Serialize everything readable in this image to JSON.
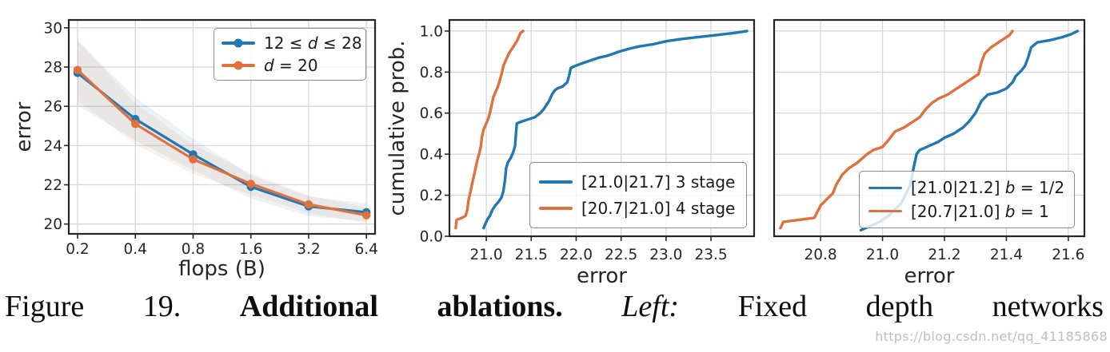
{
  "colors": {
    "blue": "#1f77b4",
    "orange": "#e0703c",
    "grid": "#d7d7d7",
    "spine": "#262626"
  },
  "watermark": "https://blog.csdn.net/qq_41185868",
  "caption": {
    "words": [
      {
        "text": "Figure"
      },
      {
        "text": "19."
      },
      {
        "text": "Additional",
        "bold": true
      },
      {
        "text": "ablations.",
        "bold": true
      },
      {
        "text": "Left:",
        "italic": true
      },
      {
        "text": "Fixed"
      },
      {
        "text": "depth"
      },
      {
        "text": "networks"
      }
    ]
  },
  "chart_data": [
    {
      "type": "line",
      "title": "",
      "xlabel": "flops (B)",
      "ylabel": "error",
      "xscale": "log2",
      "xlim": [
        0.18,
        7.1
      ],
      "ylim": [
        19.5,
        30.4
      ],
      "grid": true,
      "xtick_values": [
        0.2,
        0.4,
        0.8,
        1.6,
        3.2,
        6.4
      ],
      "xtick_labels": [
        "0.2",
        "0.4",
        "0.8",
        "1.6",
        "3.2",
        "6.4"
      ],
      "ytick_values": [
        20,
        22,
        24,
        26,
        28,
        30
      ],
      "ytick_labels": [
        "20",
        "22",
        "24",
        "26",
        "28",
        "30"
      ],
      "series": [
        {
          "name": "12 <= d <= 28",
          "color": "#1f77b4",
          "marker": true,
          "x": [
            0.2,
            0.4,
            0.8,
            1.6,
            3.2,
            6.4
          ],
          "y": [
            27.7,
            25.35,
            23.55,
            21.9,
            20.9,
            20.6
          ],
          "band": [
            1.65,
            1.1,
            0.8,
            0.6,
            0.5,
            0.45
          ]
        },
        {
          "name": "d = 20",
          "color": "#e0703c",
          "marker": true,
          "x": [
            0.2,
            0.4,
            0.8,
            1.6,
            3.2,
            6.4
          ],
          "y": [
            27.85,
            25.1,
            23.3,
            22.05,
            21.0,
            20.45
          ],
          "band": [
            1.55,
            1.05,
            0.75,
            0.55,
            0.45,
            0.4
          ]
        }
      ],
      "legend": {
        "position": "top-right",
        "items": [
          {
            "color": "#1f77b4",
            "marker": true,
            "segments": [
              {
                "text": "12 ≤ "
              },
              {
                "text": "d",
                "italic": true
              },
              {
                "text": " ≤ 28"
              }
            ]
          },
          {
            "color": "#e0703c",
            "marker": true,
            "segments": [
              {
                "text": "d",
                "italic": true
              },
              {
                "text": " = 20"
              }
            ]
          }
        ]
      }
    },
    {
      "type": "line",
      "title": "",
      "xlabel": "error",
      "ylabel": "cumulative prob.",
      "xscale": "linear",
      "xlim": [
        20.59,
        23.98
      ],
      "ylim": [
        0,
        1.054
      ],
      "grid": true,
      "xtick_values": [
        21.0,
        21.5,
        22.0,
        22.5,
        23.0,
        23.5
      ],
      "xtick_labels": [
        "21.0",
        "21.5",
        "22.0",
        "22.5",
        "23.0",
        "23.5"
      ],
      "ytick_values": [
        0.0,
        0.2,
        0.4,
        0.6,
        0.8,
        1.0
      ],
      "ytick_labels": [
        "0.0",
        "0.2",
        "0.4",
        "0.6",
        "0.8",
        "1.0"
      ],
      "series": [
        {
          "name": "[21.0|21.7] 3 stage",
          "color": "#1f77b4",
          "points": [
            [
              20.97,
              0.04
            ],
            [
              20.99,
              0.06
            ],
            [
              21.01,
              0.08
            ],
            [
              21.04,
              0.1
            ],
            [
              21.07,
              0.13
            ],
            [
              21.1,
              0.15
            ],
            [
              21.14,
              0.17
            ],
            [
              21.17,
              0.19
            ],
            [
              21.19,
              0.22
            ],
            [
              21.21,
              0.28
            ],
            [
              21.22,
              0.33
            ],
            [
              21.24,
              0.36
            ],
            [
              21.27,
              0.38
            ],
            [
              21.3,
              0.41
            ],
            [
              21.32,
              0.44
            ],
            [
              21.33,
              0.5
            ],
            [
              21.34,
              0.55
            ],
            [
              21.4,
              0.56
            ],
            [
              21.47,
              0.57
            ],
            [
              21.54,
              0.58
            ],
            [
              21.6,
              0.6
            ],
            [
              21.64,
              0.62
            ],
            [
              21.67,
              0.64
            ],
            [
              21.7,
              0.66
            ],
            [
              21.73,
              0.69
            ],
            [
              21.76,
              0.71
            ],
            [
              21.79,
              0.72
            ],
            [
              21.85,
              0.73
            ],
            [
              21.9,
              0.75
            ],
            [
              21.92,
              0.78
            ],
            [
              21.94,
              0.82
            ],
            [
              21.99,
              0.83
            ],
            [
              22.05,
              0.84
            ],
            [
              22.15,
              0.855
            ],
            [
              22.25,
              0.87
            ],
            [
              22.35,
              0.88
            ],
            [
              22.48,
              0.9
            ],
            [
              22.6,
              0.915
            ],
            [
              22.7,
              0.925
            ],
            [
              22.85,
              0.935
            ],
            [
              23.0,
              0.95
            ],
            [
              23.15,
              0.96
            ],
            [
              23.35,
              0.97
            ],
            [
              23.55,
              0.98
            ],
            [
              23.75,
              0.99
            ],
            [
              23.9,
              1.0
            ]
          ]
        },
        {
          "name": "[20.7|21.0] 4 stage",
          "color": "#e0703c",
          "points": [
            [
              20.66,
              0.04
            ],
            [
              20.67,
              0.08
            ],
            [
              20.73,
              0.09
            ],
            [
              20.77,
              0.1
            ],
            [
              20.79,
              0.13
            ],
            [
              20.8,
              0.17
            ],
            [
              20.82,
              0.21
            ],
            [
              20.84,
              0.25
            ],
            [
              20.86,
              0.29
            ],
            [
              20.88,
              0.33
            ],
            [
              20.9,
              0.37
            ],
            [
              20.92,
              0.4
            ],
            [
              20.94,
              0.44
            ],
            [
              20.95,
              0.48
            ],
            [
              20.97,
              0.52
            ],
            [
              20.99,
              0.54
            ],
            [
              21.02,
              0.57
            ],
            [
              21.04,
              0.6
            ],
            [
              21.06,
              0.64
            ],
            [
              21.08,
              0.68
            ],
            [
              21.1,
              0.7
            ],
            [
              21.13,
              0.73
            ],
            [
              21.15,
              0.76
            ],
            [
              21.17,
              0.79
            ],
            [
              21.19,
              0.83
            ],
            [
              21.22,
              0.86
            ],
            [
              21.25,
              0.89
            ],
            [
              21.28,
              0.91
            ],
            [
              21.31,
              0.93
            ],
            [
              21.34,
              0.95
            ],
            [
              21.36,
              0.97
            ],
            [
              21.38,
              0.99
            ],
            [
              21.41,
              1.0
            ]
          ]
        }
      ],
      "legend": {
        "position": "bottom-right",
        "items": [
          {
            "color": "#1f77b4",
            "segments": [
              {
                "text": "[21.0|21.7] 3 stage"
              }
            ]
          },
          {
            "color": "#e0703c",
            "segments": [
              {
                "text": "[20.7|21.0] 4 stage"
              }
            ]
          }
        ]
      }
    },
    {
      "type": "line",
      "title": "",
      "xlabel": "error",
      "ylabel": "",
      "xscale": "linear",
      "xlim": [
        20.65,
        21.652
      ],
      "ylim": [
        0,
        1.054
      ],
      "grid": true,
      "xtick_values": [
        20.8,
        21.0,
        21.2,
        21.4,
        21.6
      ],
      "xtick_labels": [
        "20.8",
        "21.0",
        "21.2",
        "21.4",
        "21.6"
      ],
      "ytick_values": [
        0.0,
        0.2,
        0.4,
        0.6,
        0.8,
        1.0
      ],
      "ytick_labels": [],
      "series": [
        {
          "name": "[21.0|21.2] b = 1/2",
          "color": "#1f77b4",
          "points": [
            [
              20.93,
              0.03
            ],
            [
              20.96,
              0.05
            ],
            [
              20.99,
              0.07
            ],
            [
              21.02,
              0.1
            ],
            [
              21.04,
              0.13
            ],
            [
              21.06,
              0.16
            ],
            [
              21.07,
              0.19
            ],
            [
              21.09,
              0.25
            ],
            [
              21.1,
              0.33
            ],
            [
              21.11,
              0.4
            ],
            [
              21.12,
              0.42
            ],
            [
              21.15,
              0.44
            ],
            [
              21.18,
              0.46
            ],
            [
              21.2,
              0.48
            ],
            [
              21.23,
              0.5
            ],
            [
              21.26,
              0.53
            ],
            [
              21.28,
              0.56
            ],
            [
              21.3,
              0.6
            ],
            [
              21.31,
              0.63
            ],
            [
              21.32,
              0.66
            ],
            [
              21.34,
              0.69
            ],
            [
              21.37,
              0.7
            ],
            [
              21.4,
              0.72
            ],
            [
              21.42,
              0.75
            ],
            [
              21.43,
              0.78
            ],
            [
              21.45,
              0.81
            ],
            [
              21.46,
              0.83
            ],
            [
              21.47,
              0.87
            ],
            [
              21.48,
              0.92
            ],
            [
              21.5,
              0.945
            ],
            [
              21.54,
              0.955
            ],
            [
              21.58,
              0.97
            ],
            [
              21.61,
              0.985
            ],
            [
              21.63,
              1.0
            ]
          ]
        },
        {
          "name": "[20.7|21.0] b = 1",
          "color": "#e0703c",
          "points": [
            [
              20.67,
              0.04
            ],
            [
              20.68,
              0.07
            ],
            [
              20.73,
              0.08
            ],
            [
              20.78,
              0.09
            ],
            [
              20.79,
              0.12
            ],
            [
              20.8,
              0.15
            ],
            [
              20.82,
              0.18
            ],
            [
              20.84,
              0.21
            ],
            [
              20.85,
              0.25
            ],
            [
              20.87,
              0.3
            ],
            [
              20.89,
              0.33
            ],
            [
              20.92,
              0.36
            ],
            [
              20.95,
              0.4
            ],
            [
              20.97,
              0.42
            ],
            [
              21.0,
              0.435
            ],
            [
              21.02,
              0.47
            ],
            [
              21.04,
              0.51
            ],
            [
              21.07,
              0.53
            ],
            [
              21.09,
              0.55
            ],
            [
              21.12,
              0.58
            ],
            [
              21.14,
              0.62
            ],
            [
              21.16,
              0.65
            ],
            [
              21.18,
              0.67
            ],
            [
              21.21,
              0.69
            ],
            [
              21.24,
              0.72
            ],
            [
              21.27,
              0.75
            ],
            [
              21.29,
              0.77
            ],
            [
              21.31,
              0.79
            ],
            [
              21.32,
              0.85
            ],
            [
              21.33,
              0.89
            ],
            [
              21.35,
              0.92
            ],
            [
              21.37,
              0.94
            ],
            [
              21.39,
              0.96
            ],
            [
              21.41,
              0.98
            ],
            [
              21.42,
              1.0
            ]
          ]
        }
      ],
      "legend": {
        "position": "bottom-right",
        "items": [
          {
            "color": "#1f77b4",
            "segments": [
              {
                "text": "[21.0|21.2] "
              },
              {
                "text": "b",
                "italic": true
              },
              {
                "text": " = 1/2"
              }
            ]
          },
          {
            "color": "#e0703c",
            "segments": [
              {
                "text": "[20.7|21.0] "
              },
              {
                "text": "b",
                "italic": true
              },
              {
                "text": " = 1"
              }
            ]
          }
        ]
      }
    }
  ]
}
